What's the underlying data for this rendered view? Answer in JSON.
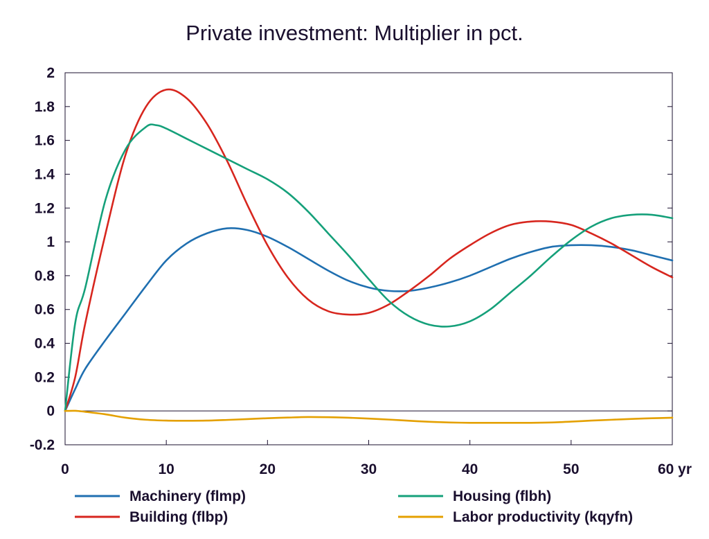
{
  "chart_data": {
    "type": "line",
    "title": "Private investment: Multiplier in pct.",
    "xlabel": "",
    "ylabel": "",
    "x_unit_label": "yr",
    "xlim": [
      0,
      60
    ],
    "ylim": [
      -0.2,
      2
    ],
    "x_ticks": [
      0,
      10,
      20,
      30,
      40,
      50,
      60
    ],
    "x_tick_labels": [
      "0",
      "10",
      "20",
      "30",
      "40",
      "50",
      "60 yr"
    ],
    "y_ticks": [
      -0.2,
      0,
      0.2,
      0.4,
      0.6,
      0.8,
      1,
      1.2,
      1.4,
      1.6,
      1.8,
      2
    ],
    "y_tick_labels": [
      "-0.2",
      "0",
      "0.2",
      "0.4",
      "0.6",
      "0.8",
      "1",
      "1.2",
      "1.4",
      "1.6",
      "1.8",
      "2"
    ],
    "grid": false,
    "zero_line": true,
    "legend_position": "bottom",
    "series": [
      {
        "name": "Machinery (flmp)",
        "color": "#1f6fb0",
        "x": [
          0,
          1,
          2,
          4,
          6,
          8,
          10,
          12,
          14,
          16,
          18,
          20,
          22,
          24,
          26,
          28,
          30,
          32,
          34,
          36,
          38,
          40,
          42,
          44,
          46,
          48,
          50,
          52,
          54,
          56,
          58,
          60
        ],
        "values": [
          0,
          0.13,
          0.25,
          0.42,
          0.58,
          0.74,
          0.89,
          0.99,
          1.05,
          1.08,
          1.07,
          1.03,
          0.97,
          0.9,
          0.83,
          0.77,
          0.73,
          0.71,
          0.71,
          0.73,
          0.76,
          0.8,
          0.85,
          0.9,
          0.94,
          0.97,
          0.98,
          0.98,
          0.97,
          0.95,
          0.92,
          0.89
        ]
      },
      {
        "name": "Building (flbp)",
        "color": "#d7261e",
        "x": [
          0,
          1,
          2,
          4,
          6,
          8,
          10,
          12,
          14,
          16,
          18,
          20,
          22,
          24,
          26,
          28,
          30,
          32,
          34,
          36,
          38,
          40,
          42,
          44,
          46,
          48,
          50,
          52,
          54,
          56,
          58,
          60
        ],
        "values": [
          0,
          0.2,
          0.52,
          1.05,
          1.52,
          1.8,
          1.9,
          1.85,
          1.7,
          1.48,
          1.22,
          0.98,
          0.79,
          0.66,
          0.59,
          0.57,
          0.58,
          0.63,
          0.71,
          0.8,
          0.9,
          0.98,
          1.05,
          1.1,
          1.12,
          1.12,
          1.1,
          1.05,
          0.99,
          0.92,
          0.85,
          0.79
        ]
      },
      {
        "name": "Housing (flbh)",
        "color": "#15a07a",
        "x": [
          0,
          1,
          2,
          4,
          6,
          8,
          9,
          10,
          12,
          14,
          16,
          18,
          20,
          22,
          24,
          26,
          28,
          30,
          32,
          34,
          36,
          38,
          40,
          42,
          44,
          46,
          48,
          50,
          52,
          54,
          56,
          58,
          60
        ],
        "values": [
          0,
          0.52,
          0.73,
          1.25,
          1.55,
          1.68,
          1.69,
          1.67,
          1.61,
          1.55,
          1.49,
          1.43,
          1.37,
          1.29,
          1.18,
          1.05,
          0.92,
          0.78,
          0.65,
          0.56,
          0.51,
          0.5,
          0.53,
          0.6,
          0.7,
          0.8,
          0.91,
          1.01,
          1.09,
          1.14,
          1.16,
          1.16,
          1.14
        ]
      },
      {
        "name": "Labor productivity (kqyfn)",
        "color": "#e4a000",
        "x": [
          0,
          1,
          2,
          4,
          6,
          8,
          10,
          12,
          14,
          16,
          18,
          20,
          22,
          24,
          26,
          28,
          30,
          32,
          34,
          36,
          38,
          40,
          42,
          44,
          46,
          48,
          50,
          52,
          54,
          56,
          58,
          60
        ],
        "values": [
          0,
          0.001,
          -0.005,
          -0.02,
          -0.04,
          -0.052,
          -0.057,
          -0.058,
          -0.057,
          -0.053,
          -0.048,
          -0.043,
          -0.039,
          -0.036,
          -0.037,
          -0.04,
          -0.045,
          -0.051,
          -0.058,
          -0.064,
          -0.068,
          -0.07,
          -0.07,
          -0.07,
          -0.07,
          -0.068,
          -0.063,
          -0.057,
          -0.052,
          -0.047,
          -0.043,
          -0.04
        ]
      }
    ]
  }
}
